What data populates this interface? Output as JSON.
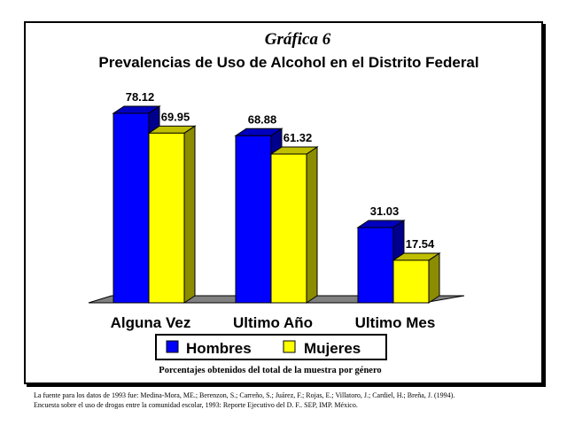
{
  "chart_data": {
    "type": "bar",
    "label": "Gráfica 6",
    "title": "Prevalencias de Uso de Alcohol en el Distrito Federal",
    "categories": [
      "Alguna Vez",
      "Ultimo Año",
      "Ultimo Mes"
    ],
    "series": [
      {
        "name": "Hombres",
        "values": [
          78.12,
          68.88,
          31.03
        ],
        "color": "#0000ff"
      },
      {
        "name": "Mujeres",
        "values": [
          69.95,
          61.32,
          17.54
        ],
        "color": "#ffff00"
      }
    ],
    "value_labels": [
      [
        "78.12",
        "68.88",
        "31.03"
      ],
      [
        "69.95",
        "61.32",
        "17.54"
      ]
    ],
    "ylim": [
      0,
      100
    ],
    "grid": false,
    "legend": "bottom",
    "style": "3d",
    "note": "Porcentajes obtenidos del total de la muestra por género"
  },
  "source": {
    "line1": "La fuente para los datos de 1993 fue: Medina-Mora, ME.; Berenzon, S.; Carreño, S.; Juárez, F.; Rojas, E.; Villatoro, J.; Cardiel, H.; Breña, J. (1994).",
    "line2": "Encuesta sobre el uso de drogas entre la comunidad escolar, 1993: Reporte Ejecutivo del D. F.. SEP, IMP. México."
  },
  "colors": {
    "plot_background": "#ffffff",
    "floor": "#808080",
    "frame": "#000000"
  }
}
